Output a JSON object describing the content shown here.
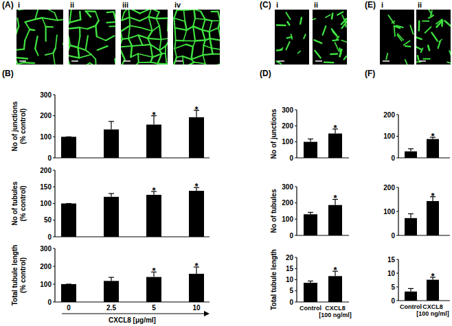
{
  "figure": {
    "panels": [
      {
        "label": "(A)",
        "images": [
          "i",
          "ii",
          "iii",
          "iv"
        ]
      },
      {
        "label": "(B)"
      },
      {
        "label": "(C)",
        "images": [
          "i",
          "ii"
        ]
      },
      {
        "label": "(D)"
      },
      {
        "label": "(E)",
        "images": [
          "i",
          "ii"
        ]
      },
      {
        "label": "(F)"
      }
    ]
  },
  "chart_data": [
    {
      "type": "bar",
      "ylabel": "No of junctions (% control)",
      "categories": [
        null,
        null,
        null,
        null
      ],
      "values": [
        100,
        135,
        158,
        193
      ],
      "errors": [
        0,
        38,
        42,
        33
      ],
      "significance": [
        null,
        null,
        "*",
        "*"
      ],
      "ylim": [
        0,
        300
      ],
      "yticks": [
        0,
        100,
        200,
        300
      ],
      "color": "#000000",
      "tick_labels": "y"
    },
    {
      "type": "bar",
      "ylabel": "No of tubules (% control)",
      "categories": [
        null,
        null,
        null,
        null
      ],
      "values": [
        100,
        120,
        126,
        138
      ],
      "errors": [
        0,
        10,
        10,
        10
      ],
      "significance": [
        null,
        null,
        "*",
        "*"
      ],
      "ylim": [
        0,
        200
      ],
      "yticks": [
        0,
        50,
        100,
        150,
        200
      ],
      "color": "#000000",
      "tick_labels": "y"
    },
    {
      "type": "bar",
      "ylabel": "Total tubule length (% control)",
      "xlabel": "CXCL8 [μg/ml]",
      "categories": [
        "0",
        "2.5",
        "5",
        "10"
      ],
      "values": [
        100,
        118,
        140,
        158
      ],
      "errors": [
        0,
        20,
        28,
        38
      ],
      "significance": [
        null,
        null,
        "*",
        "*"
      ],
      "ylim": [
        0,
        300
      ],
      "yticks": [
        0,
        100,
        200,
        300
      ],
      "color": "#000000",
      "tick_labels": true
    },
    {
      "type": "bar",
      "ylabel": "No of junctions",
      "categories": [
        null,
        null
      ],
      "values": [
        100,
        152
      ],
      "errors": [
        18,
        28
      ],
      "significance": [
        null,
        "*"
      ],
      "ylim": [
        0,
        300
      ],
      "yticks": [
        0,
        100,
        200,
        300
      ],
      "color": "#000000",
      "tick_labels": "y"
    },
    {
      "type": "bar",
      "ylabel": "No of tubules",
      "categories": [
        null,
        null
      ],
      "values": [
        130,
        187
      ],
      "errors": [
        12,
        35
      ],
      "significance": [
        null,
        "*"
      ],
      "ylim": [
        0,
        300
      ],
      "yticks": [
        0,
        100,
        200,
        300
      ],
      "color": "#000000",
      "tick_labels": "y"
    },
    {
      "type": "bar",
      "ylabel": "Total tubule length",
      "categories": [
        "Control",
        "CXCL8 [100 ng/ml]"
      ],
      "values": [
        8.6,
        11.6
      ],
      "errors": [
        0.8,
        2.2
      ],
      "significance": [
        null,
        "*"
      ],
      "ylim": [
        0,
        20
      ],
      "yticks": [
        0,
        5,
        10,
        15,
        20
      ],
      "color": "#000000",
      "tick_labels": true
    },
    {
      "type": "bar",
      "categories": [
        null,
        null
      ],
      "values": [
        30,
        87
      ],
      "errors": [
        12,
        8
      ],
      "significance": [
        null,
        "*"
      ],
      "ylim": [
        0,
        200
      ],
      "yticks": [
        0,
        100,
        200
      ],
      "color": "#000000",
      "tick_labels": "y"
    },
    {
      "type": "bar",
      "categories": [
        null,
        null
      ],
      "values": [
        72,
        143
      ],
      "errors": [
        18,
        18
      ],
      "significance": [
        null,
        "*"
      ],
      "ylim": [
        0,
        200
      ],
      "yticks": [
        0,
        100,
        200
      ],
      "color": "#000000",
      "tick_labels": "y"
    },
    {
      "type": "bar",
      "categories": [
        "Control",
        "CXCL8 [100 ng/ml]"
      ],
      "values": [
        3.3,
        7.6
      ],
      "errors": [
        1.1,
        0.9
      ],
      "significance": [
        null,
        "*"
      ],
      "ylim": [
        0,
        15
      ],
      "yticks": [
        0,
        5,
        10,
        15
      ],
      "color": "#000000",
      "tick_labels": true
    }
  ]
}
